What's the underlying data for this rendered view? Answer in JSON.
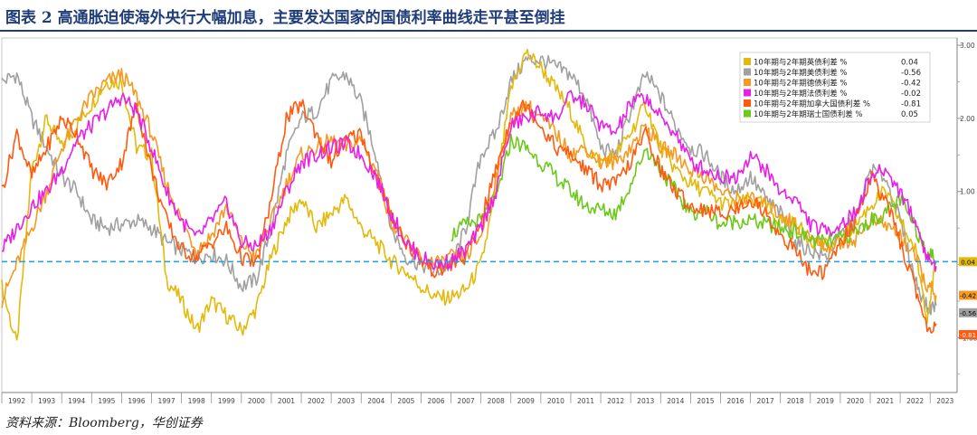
{
  "figure": {
    "title": "图表 2  高通胀迫使海外央行大幅加息，主要发达国家的国债利率曲线走平甚至倒挂",
    "source": "资料来源：Bloomberg，华创证券"
  },
  "chart_data": {
    "type": "line",
    "xlabel": "",
    "ylabel": "",
    "xlim": [
      1992,
      2023.9
    ],
    "ylim": [
      -1.75,
      3.1
    ],
    "x_ticks": [
      "1992",
      "1993",
      "1994",
      "1995",
      "1996",
      "1997",
      "1998",
      "1999",
      "2000",
      "2001",
      "2002",
      "2003",
      "2004",
      "2005",
      "2006",
      "2007",
      "2008",
      "2009",
      "2010",
      "2011",
      "2012",
      "2013",
      "2014",
      "2015",
      "2016",
      "2017",
      "2018",
      "2019",
      "2020",
      "2021",
      "2022",
      "2023"
    ],
    "y_ticks": [
      {
        "value": 3,
        "label": "3.00"
      },
      {
        "value": 2,
        "label": "2.00"
      },
      {
        "value": 1,
        "label": "1.00"
      },
      {
        "value": -1,
        "label": "-1.00"
      }
    ],
    "reference_line": {
      "value": 0.04,
      "style": "dashed",
      "color": "#2aa3d8"
    },
    "legend_position": "top-right",
    "grid": false,
    "series": [
      {
        "name": "10年期与2年期英债利差 %",
        "latest": "0.04",
        "color": "#e3b90c",
        "x": [
          1992,
          1992.5,
          1993,
          1993.5,
          1994,
          1994.5,
          1995,
          1995.5,
          1996,
          1996.5,
          1997,
          1997.5,
          1998,
          1998.5,
          1999,
          1999.5,
          2000,
          2000.5,
          2001,
          2001.5,
          2002,
          2002.5,
          2003,
          2003.5,
          2004,
          2004.5,
          2005,
          2005.5,
          2006,
          2006.5,
          2007,
          2007.5,
          2008,
          2008.5,
          2009,
          2009.5,
          2010,
          2010.5,
          2011,
          2011.5,
          2012,
          2012.5,
          2013,
          2013.5,
          2014,
          2014.5,
          2015,
          2015.5,
          2016,
          2016.5,
          2017,
          2017.5,
          2018,
          2018.5,
          2019,
          2019.5,
          2020,
          2020.5,
          2021,
          2021.5,
          2022,
          2022.5,
          2022.9,
          2023.2
        ],
        "y": [
          -0.3,
          -1.1,
          1.3,
          2.0,
          1.6,
          1.9,
          2.2,
          2.5,
          2.5,
          1.6,
          1.5,
          -0.2,
          -0.5,
          -0.9,
          -0.5,
          -0.7,
          -0.9,
          -0.6,
          0.1,
          0.6,
          0.9,
          0.5,
          0.7,
          0.9,
          0.5,
          0.3,
          0.05,
          -0.1,
          -0.3,
          -0.45,
          -0.45,
          -0.35,
          0.0,
          1.0,
          2.4,
          2.9,
          2.7,
          2.4,
          2.1,
          1.6,
          1.4,
          1.5,
          1.8,
          2.2,
          1.6,
          1.3,
          1.1,
          1.0,
          0.85,
          0.8,
          0.9,
          0.8,
          0.6,
          0.55,
          0.35,
          0.25,
          0.3,
          0.55,
          0.8,
          1.0,
          0.6,
          0.2,
          -0.7,
          0.04
        ]
      },
      {
        "name": "10年期与2年期美债利差 %",
        "latest": "-0.56",
        "color": "#a0a0a0",
        "x": [
          1992,
          1992.5,
          1993,
          1993.5,
          1994,
          1994.5,
          1995,
          1995.5,
          1996,
          1996.5,
          1997,
          1997.5,
          1998,
          1998.5,
          1999,
          1999.5,
          2000,
          2000.5,
          2001,
          2001.5,
          2002,
          2002.5,
          2003,
          2003.5,
          2004,
          2004.5,
          2005,
          2005.5,
          2006,
          2006.5,
          2007,
          2007.5,
          2008,
          2008.5,
          2009,
          2009.5,
          2010,
          2010.5,
          2011,
          2011.5,
          2012,
          2012.5,
          2013,
          2013.5,
          2014,
          2014.5,
          2015,
          2015.5,
          2016,
          2016.5,
          2017,
          2017.5,
          2018,
          2018.5,
          2019,
          2019.5,
          2020,
          2020.5,
          2021,
          2021.5,
          2022,
          2022.5,
          2022.9,
          2023.2
        ],
        "y": [
          2.5,
          2.6,
          2.0,
          1.6,
          1.2,
          1.0,
          0.6,
          0.5,
          0.55,
          0.6,
          0.5,
          0.3,
          0.2,
          0.1,
          0.15,
          0.05,
          -0.3,
          -0.2,
          0.5,
          1.5,
          2.0,
          2.1,
          2.5,
          2.6,
          2.2,
          1.5,
          0.5,
          0.1,
          0.0,
          -0.1,
          0.0,
          0.5,
          1.5,
          1.8,
          2.5,
          2.8,
          2.8,
          2.7,
          2.6,
          2.3,
          1.6,
          1.5,
          2.1,
          2.6,
          2.3,
          1.9,
          1.6,
          1.5,
          1.2,
          1.0,
          1.2,
          0.9,
          0.7,
          0.3,
          0.2,
          0.1,
          0.4,
          0.6,
          1.3,
          1.2,
          0.6,
          -0.2,
          -0.6,
          -0.56
        ]
      },
      {
        "name": "10年期与2年期德债利差 %",
        "latest": "-0.42",
        "color": "#f59a21",
        "x": [
          1992,
          1992.5,
          1993,
          1993.5,
          1994,
          1994.5,
          1995,
          1995.5,
          1996,
          1996.5,
          1997,
          1997.5,
          1998,
          1998.5,
          1999,
          1999.5,
          2000,
          2000.5,
          2001,
          2001.5,
          2002,
          2002.5,
          2003,
          2003.5,
          2004,
          2004.5,
          2005,
          2005.5,
          2006,
          2006.5,
          2007,
          2007.5,
          2008,
          2008.5,
          2009,
          2009.5,
          2010,
          2010.5,
          2011,
          2011.5,
          2012,
          2012.5,
          2013,
          2013.5,
          2014,
          2014.5,
          2015,
          2015.5,
          2016,
          2016.5,
          2017,
          2017.5,
          2018,
          2018.5,
          2019,
          2019.5,
          2020,
          2020.5,
          2021,
          2021.5,
          2022,
          2022.5,
          2022.9,
          2023.2
        ],
        "y": [
          -0.5,
          0.0,
          0.5,
          1.0,
          1.6,
          2.0,
          2.3,
          2.5,
          2.6,
          2.3,
          1.8,
          1.1,
          0.6,
          0.2,
          0.4,
          0.8,
          0.3,
          0.1,
          0.6,
          1.1,
          1.5,
          1.6,
          1.7,
          1.6,
          1.7,
          1.3,
          0.6,
          0.3,
          0.1,
          0.0,
          0.1,
          0.1,
          0.4,
          1.2,
          2.0,
          2.2,
          2.0,
          1.8,
          1.5,
          1.6,
          1.4,
          1.4,
          1.6,
          1.9,
          1.6,
          1.5,
          1.3,
          1.2,
          1.0,
          0.9,
          0.9,
          0.8,
          0.7,
          0.55,
          0.35,
          0.25,
          0.3,
          0.35,
          0.6,
          0.55,
          0.4,
          0.1,
          -0.3,
          -0.42
        ]
      },
      {
        "name": "10年期与2年期法债利差 %",
        "latest": "-0.02",
        "color": "#e81fe8",
        "x": [
          1992,
          1992.5,
          1993,
          1993.5,
          1994,
          1994.5,
          1995,
          1995.5,
          1996,
          1996.5,
          1997,
          1997.5,
          1998,
          1998.5,
          1999,
          1999.5,
          2000,
          2000.5,
          2001,
          2001.5,
          2002,
          2002.5,
          2003,
          2003.5,
          2004,
          2004.5,
          2005,
          2005.5,
          2006,
          2006.5,
          2007,
          2007.5,
          2008,
          2008.5,
          2009,
          2009.5,
          2010,
          2010.5,
          2011,
          2011.5,
          2012,
          2012.5,
          2013,
          2013.5,
          2014,
          2014.5,
          2015,
          2015.5,
          2016,
          2016.5,
          2017,
          2017.5,
          2018,
          2018.5,
          2019,
          2019.5,
          2020,
          2020.5,
          2021,
          2021.5,
          2022,
          2022.5,
          2022.9,
          2023.2
        ],
        "y": [
          0.2,
          0.5,
          0.8,
          1.0,
          1.3,
          1.7,
          1.9,
          2.1,
          2.3,
          2.1,
          1.6,
          1.0,
          0.6,
          0.35,
          0.6,
          0.85,
          0.3,
          0.25,
          0.5,
          1.0,
          1.4,
          1.5,
          1.6,
          1.65,
          1.5,
          1.2,
          0.7,
          0.3,
          0.1,
          0.0,
          0.05,
          0.2,
          0.5,
          1.0,
          1.9,
          2.0,
          2.1,
          2.0,
          2.3,
          2.2,
          1.9,
          1.8,
          2.2,
          2.3,
          2.0,
          1.8,
          1.4,
          1.3,
          1.2,
          1.2,
          1.5,
          1.3,
          1.0,
          0.9,
          0.55,
          0.45,
          0.55,
          0.7,
          1.2,
          1.3,
          1.0,
          0.6,
          0.1,
          -0.02
        ]
      },
      {
        "name": "10年期与2年期加拿大国债利差 %",
        "latest": "-0.81",
        "color": "#ff5a0f",
        "x": [
          1992,
          1992.5,
          1993,
          1993.5,
          1994,
          1994.5,
          1995,
          1995.5,
          1996,
          1996.5,
          1997,
          1997.5,
          1998,
          1998.5,
          1999,
          1999.5,
          2000,
          2000.5,
          2001,
          2001.5,
          2002,
          2002.5,
          2003,
          2003.5,
          2004,
          2004.5,
          2005,
          2005.5,
          2006,
          2006.5,
          2007,
          2007.5,
          2008,
          2008.5,
          2009,
          2009.5,
          2010,
          2010.5,
          2011,
          2011.5,
          2012,
          2012.5,
          2013,
          2013.5,
          2014,
          2014.5,
          2015,
          2015.5,
          2016,
          2016.5,
          2017,
          2017.5,
          2018,
          2018.5,
          2019,
          2019.5,
          2020,
          2020.5,
          2021,
          2021.5,
          2022,
          2022.5,
          2022.9,
          2023.2
        ],
        "y": [
          1.0,
          1.8,
          1.2,
          1.6,
          2.0,
          1.8,
          1.3,
          1.1,
          1.4,
          2.2,
          1.3,
          0.6,
          0.2,
          0.1,
          0.3,
          0.5,
          0.1,
          0.0,
          0.9,
          2.0,
          2.2,
          1.8,
          1.4,
          1.7,
          1.8,
          1.2,
          0.7,
          0.3,
          0.05,
          -0.1,
          0.0,
          0.1,
          0.6,
          1.3,
          2.0,
          2.2,
          1.9,
          1.6,
          1.5,
          1.3,
          1.1,
          1.1,
          1.4,
          1.8,
          1.3,
          1.0,
          0.8,
          0.75,
          0.7,
          0.75,
          0.9,
          0.7,
          0.4,
          0.2,
          -0.1,
          -0.1,
          0.3,
          0.6,
          1.2,
          0.9,
          0.3,
          -0.3,
          -0.9,
          -0.81
        ]
      },
      {
        "name": "10年期与2年期瑞士国债利差 %",
        "latest": "0.05",
        "color": "#6cc91a",
        "x": [
          2007,
          2007.5,
          2008,
          2008.5,
          2009,
          2009.5,
          2010,
          2010.5,
          2011,
          2011.5,
          2012,
          2012.5,
          2013,
          2013.5,
          2014,
          2014.5,
          2015,
          2015.5,
          2016,
          2016.5,
          2017,
          2017.5,
          2018,
          2018.5,
          2019,
          2019.5,
          2020,
          2020.5,
          2021,
          2021.5,
          2022,
          2022.5,
          2022.9,
          2023.2
        ],
        "y": [
          0.4,
          0.55,
          0.6,
          0.9,
          1.7,
          1.6,
          1.4,
          1.2,
          1.0,
          0.8,
          0.75,
          0.7,
          1.1,
          1.6,
          1.3,
          1.0,
          0.7,
          0.75,
          0.55,
          0.6,
          0.6,
          0.55,
          0.5,
          0.45,
          0.35,
          0.3,
          0.35,
          0.45,
          0.6,
          0.7,
          0.9,
          0.5,
          0.2,
          0.05
        ]
      }
    ]
  }
}
